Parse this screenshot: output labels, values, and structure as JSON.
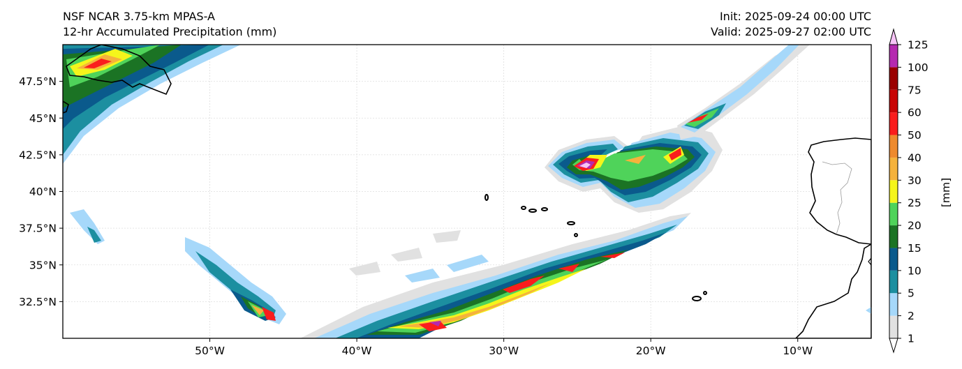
{
  "title": {
    "left_line1": "NSF NCAR 3.75-km MPAS-A",
    "left_line2": "12-hr Accumulated Precipitation (mm)",
    "right_line1": "Init: 2025-09-24 00:00 UTC",
    "right_line2": "Valid: 2025-09-27 02:00 UTC"
  },
  "map": {
    "lon_range": [
      -60,
      -5
    ],
    "lat_range": [
      30,
      50
    ],
    "lon_ticks": [
      {
        "value": -50,
        "label": "50°W"
      },
      {
        "value": -40,
        "label": "40°W"
      },
      {
        "value": -30,
        "label": "30°W"
      },
      {
        "value": -20,
        "label": "20°W"
      },
      {
        "value": -10,
        "label": "10°W"
      }
    ],
    "lat_ticks": [
      {
        "value": 47.5,
        "label": "47.5°N"
      },
      {
        "value": 45,
        "label": "45°N"
      },
      {
        "value": 42.5,
        "label": "42.5°N"
      },
      {
        "value": 40,
        "label": "40°N"
      },
      {
        "value": 37.5,
        "label": "37.5°N"
      },
      {
        "value": 35,
        "label": "35°N"
      },
      {
        "value": 32.5,
        "label": "32.5°N"
      }
    ]
  },
  "colorbar": {
    "unit_label": "[mm]",
    "levels": [
      "1",
      "2",
      "5",
      "10",
      "15",
      "20",
      "25",
      "30",
      "40",
      "50",
      "60",
      "75",
      "100",
      "125"
    ],
    "colors": [
      "#e1e1e1",
      "#a6d8fa",
      "#1c8fa0",
      "#0a5a8c",
      "#1b7324",
      "#4fd35a",
      "#f5f51b",
      "#f5b23c",
      "#ee8a2e",
      "#fa1d1d",
      "#c80505",
      "#9a0000",
      "#b52ab0",
      "#f7c4f7"
    ]
  }
}
